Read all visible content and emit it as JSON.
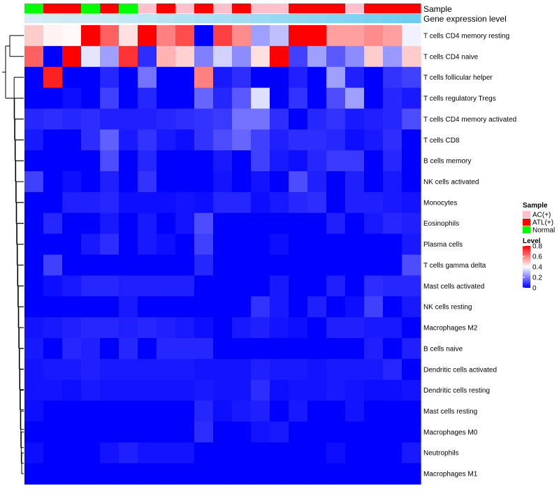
{
  "chart_data": {
    "type": "heatmap",
    "title": "",
    "column_annotations": [
      {
        "name": "Sample",
        "values": [
          "Normal",
          "ATL(+)",
          "ATL(+)",
          "Normal",
          "ATL(+)",
          "Normal",
          "AC(+)",
          "ATL(+)",
          "AC(+)",
          "ATL(+)",
          "AC(+)",
          "ATL(+)",
          "AC(+)",
          "AC(+)",
          "ATL(+)",
          "ATL(+)",
          "ATL(+)",
          "AC(+)",
          "ATL(+)",
          "ATL(+)",
          "ATL(+)"
        ]
      },
      {
        "name": "Gene expression level",
        "values": [
          0.05,
          0.08,
          0.1,
          0.12,
          0.15,
          0.18,
          0.22,
          0.26,
          0.3,
          0.34,
          0.38,
          0.42,
          0.46,
          0.5,
          0.54,
          0.58,
          0.62,
          0.66,
          0.7,
          0.74,
          0.78
        ]
      }
    ],
    "rows": [
      "T cells CD4 memory resting",
      "T cells CD4 naive",
      "T cells follicular helper",
      "T cells regulatory  Tregs",
      "T cells CD4 memory activated",
      "T cells CD8",
      "B cells memory",
      "NK cells activated",
      "Monocytes",
      "Eosinophils",
      "Plasma cells",
      "T cells gamma delta",
      "Mast cells activated",
      "NK cells resting",
      "Macrophages M2",
      "B cells naive",
      "Dendritic cells activated",
      "Dendritic cells resting",
      "Mast cells resting",
      "Macrophages M0",
      "Neutrophils",
      "Macrophages M1"
    ],
    "values": [
      [
        0.48,
        0.42,
        0.41,
        0.8,
        0.65,
        0.45,
        0.8,
        0.6,
        0.68,
        0.0,
        0.7,
        0.58,
        0.25,
        0.3,
        0.8,
        0.8,
        0.55,
        0.55,
        0.58,
        0.55,
        0.38
      ],
      [
        0.65,
        0.0,
        0.8,
        0.36,
        0.25,
        0.72,
        0.07,
        0.52,
        0.47,
        0.2,
        0.33,
        0.22,
        0.45,
        0.8,
        0.1,
        0.25,
        0.14,
        0.22,
        0.48,
        0.24,
        0.48
      ],
      [
        0.0,
        0.75,
        0.0,
        0.0,
        0.06,
        0.0,
        0.18,
        0.0,
        0.0,
        0.6,
        0.04,
        0.07,
        0.0,
        0.0,
        0.05,
        0.0,
        0.25,
        0.05,
        0.0,
        0.08,
        0.1
      ],
      [
        0.0,
        0.0,
        0.02,
        0.0,
        0.1,
        0.0,
        0.06,
        0.0,
        0.0,
        0.16,
        0.06,
        0.14,
        0.35,
        0.0,
        0.08,
        0.0,
        0.12,
        0.25,
        0.0,
        0.06,
        0.04
      ],
      [
        0.06,
        0.07,
        0.06,
        0.07,
        0.05,
        0.05,
        0.05,
        0.06,
        0.07,
        0.08,
        0.09,
        0.18,
        0.18,
        0.07,
        0.0,
        0.06,
        0.08,
        0.04,
        0.05,
        0.06,
        0.12
      ],
      [
        0.04,
        0.0,
        0.0,
        0.07,
        0.15,
        0.04,
        0.08,
        0.04,
        0.02,
        0.08,
        0.12,
        0.16,
        0.1,
        0.05,
        0.07,
        0.07,
        0.06,
        0.02,
        0.04,
        0.07,
        0.0
      ],
      [
        0.0,
        0.0,
        0.0,
        0.0,
        0.12,
        0.0,
        0.06,
        0.0,
        0.0,
        0.0,
        0.04,
        0.0,
        0.1,
        0.04,
        0.02,
        0.06,
        0.09,
        0.09,
        0.0,
        0.06,
        0.0
      ],
      [
        0.1,
        0.0,
        0.02,
        0.0,
        0.05,
        0.0,
        0.08,
        0.0,
        0.0,
        0.0,
        0.03,
        0.0,
        0.03,
        0.0,
        0.12,
        0.05,
        0.0,
        0.05,
        0.0,
        0.04,
        0.0
      ],
      [
        0.0,
        0.0,
        0.05,
        0.05,
        0.06,
        0.02,
        0.02,
        0.02,
        0.03,
        0.02,
        0.06,
        0.06,
        0.02,
        0.04,
        0.06,
        0.07,
        0.0,
        0.05,
        0.05,
        0.04,
        0.03
      ],
      [
        0.0,
        0.06,
        0.0,
        0.0,
        0.04,
        0.0,
        0.04,
        0.0,
        0.03,
        0.12,
        0.0,
        0.0,
        0.0,
        0.0,
        0.0,
        0.0,
        0.05,
        0.0,
        0.04,
        0.06,
        0.05
      ],
      [
        0.0,
        0.0,
        0.0,
        0.04,
        0.07,
        0.0,
        0.04,
        0.02,
        0.0,
        0.1,
        0.0,
        0.0,
        0.0,
        0.02,
        0.0,
        0.0,
        0.0,
        0.0,
        0.0,
        0.0,
        0.04
      ],
      [
        0.0,
        0.1,
        0.0,
        0.0,
        0.0,
        0.0,
        0.0,
        0.0,
        0.0,
        0.06,
        0.0,
        0.0,
        0.0,
        0.0,
        0.0,
        0.0,
        0.0,
        0.0,
        0.0,
        0.0,
        0.12
      ],
      [
        0.0,
        0.02,
        0.04,
        0.06,
        0.06,
        0.05,
        0.05,
        0.05,
        0.05,
        0.0,
        0.0,
        0.0,
        0.0,
        0.04,
        0.0,
        0.0,
        0.05,
        0.0,
        0.07,
        0.06,
        0.06
      ],
      [
        0.0,
        0.0,
        0.0,
        0.0,
        0.0,
        0.04,
        0.0,
        0.0,
        0.0,
        0.0,
        0.0,
        0.0,
        0.08,
        0.04,
        0.0,
        0.05,
        0.0,
        0.02,
        0.1,
        0.0,
        0.04
      ],
      [
        0.03,
        0.04,
        0.05,
        0.06,
        0.06,
        0.05,
        0.06,
        0.05,
        0.04,
        0.02,
        0.0,
        0.04,
        0.05,
        0.03,
        0.02,
        0.0,
        0.05,
        0.05,
        0.04,
        0.04,
        0.0
      ],
      [
        0.04,
        0.0,
        0.06,
        0.05,
        0.0,
        0.06,
        0.0,
        0.06,
        0.06,
        0.06,
        0.0,
        0.0,
        0.0,
        0.0,
        0.0,
        0.0,
        0.0,
        0.0,
        0.05,
        0.0,
        0.05
      ],
      [
        0.03,
        0.04,
        0.04,
        0.05,
        0.04,
        0.04,
        0.04,
        0.04,
        0.04,
        0.03,
        0.03,
        0.03,
        0.05,
        0.04,
        0.04,
        0.03,
        0.04,
        0.04,
        0.04,
        0.06,
        0.0
      ],
      [
        0.03,
        0.03,
        0.02,
        0.04,
        0.03,
        0.03,
        0.03,
        0.03,
        0.03,
        0.04,
        0.03,
        0.03,
        0.07,
        0.02,
        0.03,
        0.03,
        0.04,
        0.03,
        0.02,
        0.02,
        0.03
      ],
      [
        0.02,
        0.0,
        0.0,
        0.0,
        0.0,
        0.0,
        0.0,
        0.0,
        0.0,
        0.06,
        0.02,
        0.04,
        0.05,
        0.0,
        0.04,
        0.0,
        0.0,
        0.03,
        0.0,
        0.0,
        0.0
      ],
      [
        0.0,
        0.0,
        0.0,
        0.0,
        0.0,
        0.0,
        0.0,
        0.0,
        0.0,
        0.07,
        0.0,
        0.0,
        0.03,
        0.04,
        0.0,
        0.0,
        0.0,
        0.0,
        0.0,
        0.0,
        0.0
      ],
      [
        0.02,
        0.0,
        0.0,
        0.0,
        0.03,
        0.05,
        0.03,
        0.03,
        0.03,
        0.0,
        0.0,
        0.0,
        0.0,
        0.0,
        0.0,
        0.0,
        0.02,
        0.0,
        0.0,
        0.0,
        0.04
      ],
      [
        0.0,
        0.0,
        0.0,
        0.0,
        0.0,
        0.0,
        0.0,
        0.0,
        0.0,
        0.0,
        0.0,
        0.0,
        0.0,
        0.0,
        0.0,
        0.0,
        0.0,
        0.0,
        0.0,
        0.0,
        0.0
      ]
    ],
    "color_scale": {
      "low": "#0000ff",
      "mid": "#ffffff",
      "high": "#ff0000",
      "range": [
        0,
        0.8
      ],
      "midpoint": 0.4
    },
    "legends": {
      "sample": {
        "title": "Sample",
        "entries": [
          {
            "label": "AC(+)",
            "color": "#ffc0cb"
          },
          {
            "label": "ATL(+)",
            "color": "#ff0000"
          },
          {
            "label": "Normal",
            "color": "#00ff00"
          }
        ]
      },
      "level": {
        "title": "Level",
        "ticks": [
          "0.8",
          "0.6",
          "0.4",
          "0.2",
          "0"
        ],
        "tick_values": [
          0.8,
          0.6,
          0.4,
          0.2,
          0
        ]
      }
    },
    "gene_expression_colors": {
      "low": "#ddeef6",
      "high": "#4fc3ef"
    },
    "row_dendrogram": true
  }
}
